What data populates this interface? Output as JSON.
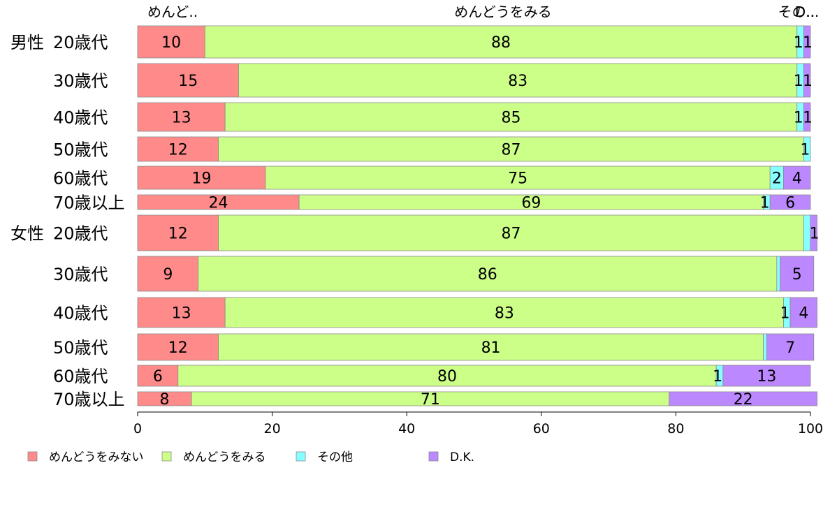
{
  "chart_data": {
    "type": "bar",
    "orientation": "horizontal",
    "stacked": true,
    "categories": [
      {
        "group": "男性",
        "label": "20歳代"
      },
      {
        "group": "",
        "label": "30歳代"
      },
      {
        "group": "",
        "label": "40歳代"
      },
      {
        "group": "",
        "label": "50歳代"
      },
      {
        "group": "",
        "label": "60歳代"
      },
      {
        "group": "",
        "label": "70歳以上"
      },
      {
        "group": "女性",
        "label": "20歳代"
      },
      {
        "group": "",
        "label": "30歳代"
      },
      {
        "group": "",
        "label": "40歳代"
      },
      {
        "group": "",
        "label": "50歳代"
      },
      {
        "group": "",
        "label": "60歳代"
      },
      {
        "group": "",
        "label": "70歳以上"
      }
    ],
    "series": [
      {
        "name": "めんどうをみない",
        "color": "#ff8a8a",
        "values": [
          10,
          15,
          13,
          12,
          19,
          24,
          12,
          9,
          13,
          12,
          6,
          8
        ]
      },
      {
        "name": "めんどうをみる",
        "color": "#ccff88",
        "values": [
          88,
          83,
          85,
          87,
          75,
          69,
          87,
          86,
          83,
          81,
          80,
          71
        ]
      },
      {
        "name": "その他",
        "color": "#88ffff",
        "values": [
          1,
          1,
          1,
          1,
          2,
          1,
          1,
          0.5,
          1,
          0.5,
          1,
          0
        ]
      },
      {
        "name": "D.K.",
        "color": "#bb88ff",
        "values": [
          1,
          1,
          1,
          0,
          4,
          6,
          1,
          5,
          4,
          7,
          13,
          22
        ]
      }
    ],
    "value_labels": [
      [
        "10",
        "88",
        "1",
        "1"
      ],
      [
        "15",
        "83",
        "1",
        "1"
      ],
      [
        "13",
        "85",
        "1",
        "1"
      ],
      [
        "12",
        "87",
        "1",
        ""
      ],
      [
        "19",
        "75",
        "2",
        "4"
      ],
      [
        "24",
        "69",
        "1",
        "6"
      ],
      [
        "12",
        "87",
        "",
        "1"
      ],
      [
        "9",
        "86",
        "",
        "5"
      ],
      [
        "13",
        "83",
        "1",
        "4"
      ],
      [
        "12",
        "81",
        "",
        "7"
      ],
      [
        "6",
        "80",
        "1",
        "13"
      ],
      [
        "8",
        "71",
        "",
        "22"
      ]
    ],
    "top_labels": [
      "めんど..",
      "めんどうをみる",
      "その..",
      "D..."
    ],
    "xlim": [
      0,
      100
    ],
    "xticks": [
      "0",
      "20",
      "40",
      "60",
      "80",
      "100"
    ],
    "grid": false,
    "legend_position": "bottom-left"
  }
}
